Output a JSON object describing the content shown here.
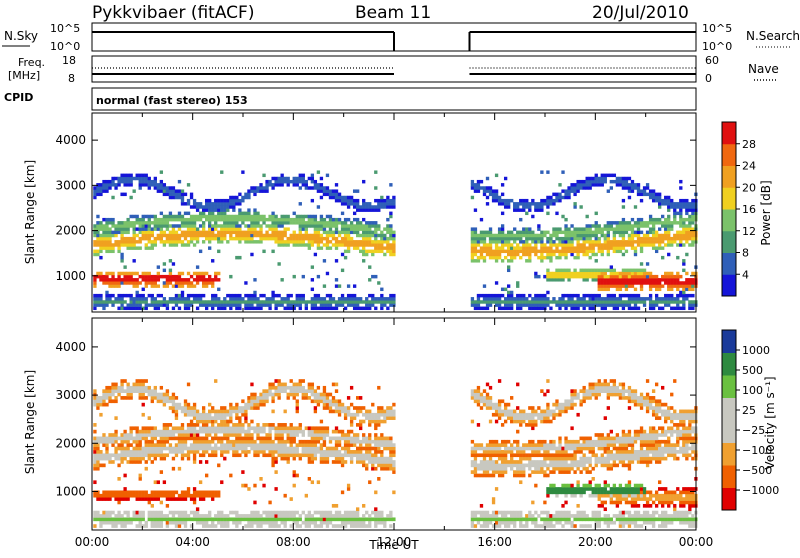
{
  "header": {
    "station": "Pykkvibaer (fitACF)",
    "beam": "Beam 11",
    "date": "20/Jul/2010",
    "cpid_label": "CPID",
    "cpid_text": "normal (fast stereo) 153"
  },
  "panels": {
    "nsky": {
      "label": "N.Sky",
      "ticks": [
        "10^5",
        "10^0"
      ],
      "right_label": "N.Search",
      "right_ticks": [
        "10^5",
        "10^0"
      ]
    },
    "freq": {
      "label": "Freq.",
      "unit": "[MHz]",
      "ticks": [
        "18",
        "8"
      ],
      "right_label": "Nave",
      "right_ticks": [
        "60",
        "0"
      ]
    }
  },
  "chart_data": [
    {
      "type": "heatmap",
      "title": "",
      "ylabel": "Slant Range [km]",
      "xlabel": "",
      "xlim": [
        0,
        24
      ],
      "ylim": [
        200,
        4600
      ],
      "yticks": [
        "1000",
        "2000",
        "3000",
        "4000"
      ],
      "colorbar": {
        "label": "Power [dB]",
        "ticks": [
          "28",
          "24",
          "20",
          "16",
          "12",
          "8",
          "4"
        ],
        "range": [
          0,
          30
        ],
        "colors": [
          "#1515d8",
          "#2f5fb8",
          "#4a9a70",
          "#7bc26a",
          "#f0d020",
          "#f0a020",
          "#f06810",
          "#e01010"
        ]
      },
      "data_gap": [
        12,
        15
      ]
    },
    {
      "type": "heatmap",
      "title": "",
      "ylabel": "Slant Range [km]",
      "xlabel": "Time UT",
      "xlim": [
        0,
        24
      ],
      "ylim": [
        200,
        4600
      ],
      "xticks": [
        "00:00",
        "04:00",
        "08:00",
        "12:00",
        "16:00",
        "20:00",
        "00:00"
      ],
      "yticks": [
        "1000",
        "2000",
        "3000",
        "4000"
      ],
      "colorbar": {
        "label": "Velocity [m s⁻¹]",
        "ticks": [
          "1000",
          "500",
          "100",
          "25",
          "−25",
          "−100",
          "−500",
          "−1000"
        ],
        "range": [
          -1200,
          1200
        ],
        "colors": [
          "#e00000",
          "#f06000",
          "#f0a030",
          "#c8c8c0",
          "#c8c8c0",
          "#6ac040",
          "#2e8a40",
          "#1a3a9a"
        ]
      },
      "data_gap": [
        12,
        15
      ]
    }
  ]
}
